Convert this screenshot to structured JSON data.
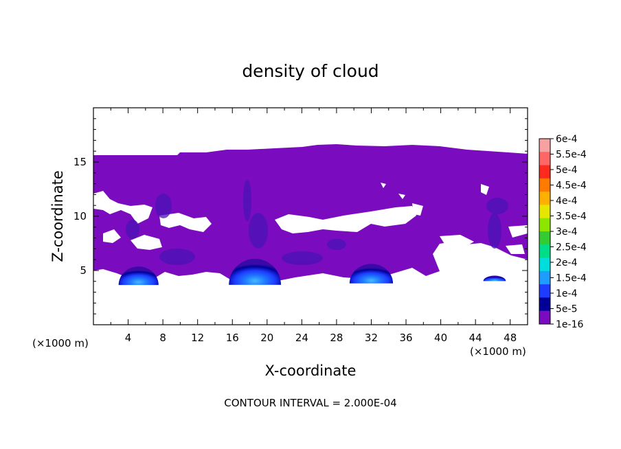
{
  "chart_data": {
    "type": "heatmap",
    "title": "density of cloud",
    "xlabel": "X-coordinate",
    "ylabel": "Z-coordinate",
    "x_unit": "(×1000 m)",
    "z_unit": "(×1000 m)",
    "xlim": [
      0,
      50
    ],
    "ylim": [
      0,
      20
    ],
    "x_ticks": [
      4,
      8,
      12,
      16,
      20,
      24,
      28,
      32,
      36,
      40,
      44,
      48
    ],
    "y_ticks": [
      5,
      10,
      15
    ],
    "contour_interval_text": "CONTOUR INTERVAL = 2.000E-04",
    "colorbar": {
      "labels": [
        "6e-4",
        "5.5e-4",
        "5e-4",
        "4.5e-4",
        "4e-4",
        "3.5e-4",
        "3e-4",
        "2.5e-4",
        "2e-4",
        "1.5e-4",
        "1e-4",
        "5e-5",
        "1e-16"
      ],
      "colors": [
        "#f7a1a1",
        "#ff6666",
        "#ff2a1e",
        "#ff7a00",
        "#ffb000",
        "#e6e600",
        "#8ce600",
        "#33cc33",
        "#00dd88",
        "#00dddd",
        "#1f9cff",
        "#1e3cff",
        "#000099",
        "#7b0bbf"
      ]
    },
    "cloud_color": "#7b0bbf",
    "cores": [
      {
        "x": 5.2,
        "z": 4.6,
        "rx": 2.3,
        "rz": 1.7
      },
      {
        "x": 18.6,
        "z": 5.0,
        "rx": 3.0,
        "rz": 2.4
      },
      {
        "x": 32.0,
        "z": 4.8,
        "rx": 2.5,
        "rz": 1.8
      },
      {
        "x": 46.2,
        "z": 4.3,
        "rx": 1.3,
        "rz": 0.5
      }
    ]
  }
}
